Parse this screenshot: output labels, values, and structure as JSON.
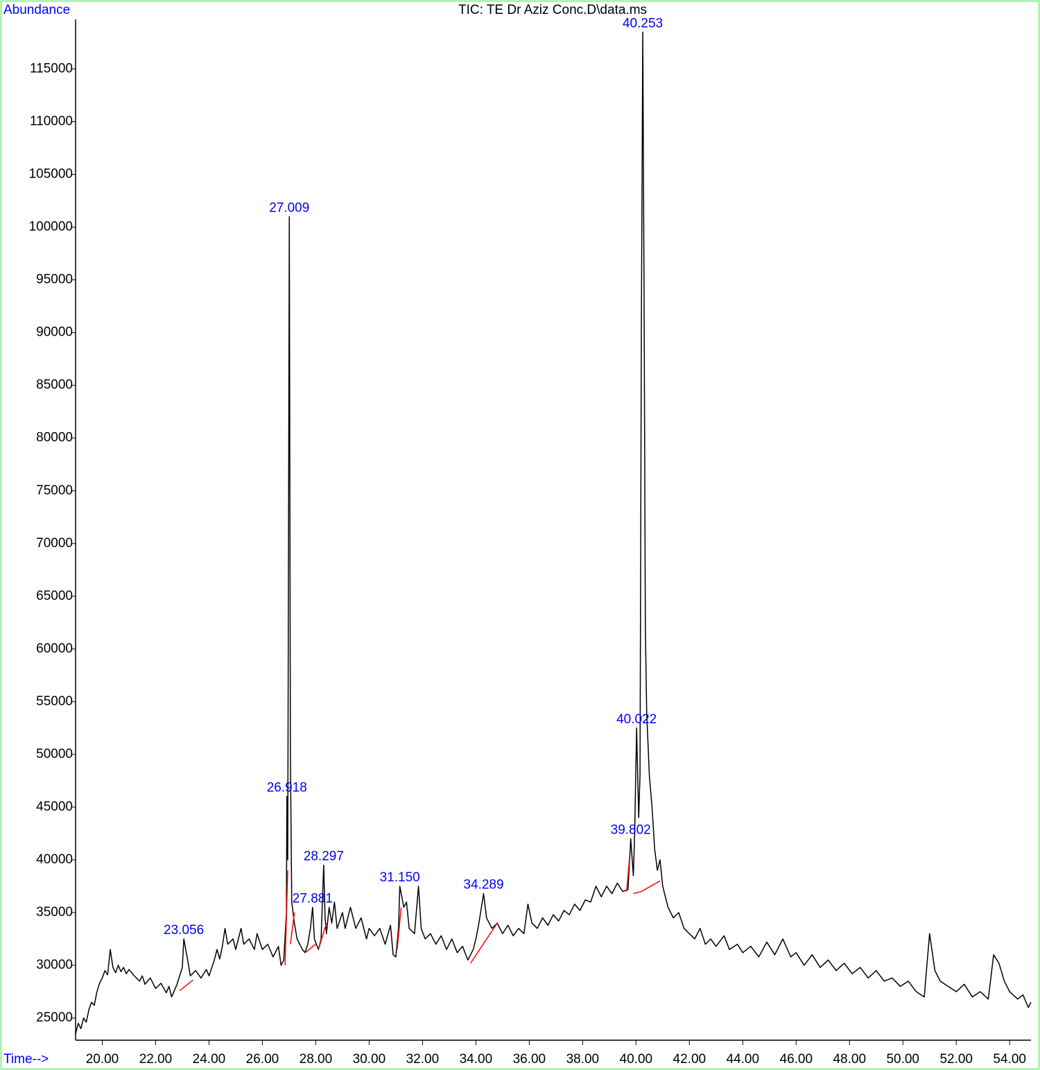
{
  "chart_data": {
    "type": "line",
    "title": "TIC: TE Dr Aziz Conc.D\\data.ms",
    "y_label": "Abundance",
    "x_label": "Time-->",
    "xlim": [
      19.0,
      54.8
    ],
    "ylim": [
      22900,
      119700
    ],
    "xticks": [
      {
        "value": 20,
        "label": "20.00"
      },
      {
        "value": 22,
        "label": "22.00"
      },
      {
        "value": 24,
        "label": "24.00"
      },
      {
        "value": 26,
        "label": "26.00"
      },
      {
        "value": 28,
        "label": "28.00"
      },
      {
        "value": 30,
        "label": "30.00"
      },
      {
        "value": 32,
        "label": "32.00"
      },
      {
        "value": 34,
        "label": "34.00"
      },
      {
        "value": 36,
        "label": "36.00"
      },
      {
        "value": 38,
        "label": "38.00"
      },
      {
        "value": 40,
        "label": "40.00"
      },
      {
        "value": 42,
        "label": "42.00"
      },
      {
        "value": 44,
        "label": "44.00"
      },
      {
        "value": 46,
        "label": "46.00"
      },
      {
        "value": 48,
        "label": "48.00"
      },
      {
        "value": 50,
        "label": "50.00"
      },
      {
        "value": 52,
        "label": "52.00"
      },
      {
        "value": 54,
        "label": "54.00"
      }
    ],
    "yticks": [
      25000,
      30000,
      35000,
      40000,
      45000,
      50000,
      55000,
      60000,
      65000,
      70000,
      75000,
      80000,
      85000,
      90000,
      95000,
      100000,
      105000,
      110000,
      115000
    ],
    "x": [
      19.0,
      19.1,
      19.2,
      19.3,
      19.4,
      19.5,
      19.6,
      19.7,
      19.8,
      19.9,
      20.0,
      20.1,
      20.2,
      20.3,
      20.4,
      20.5,
      20.6,
      20.7,
      20.8,
      20.9,
      21.0,
      21.2,
      21.4,
      21.5,
      21.6,
      21.8,
      22.0,
      22.2,
      22.4,
      22.5,
      22.6,
      22.8,
      23.0,
      23.056,
      23.2,
      23.3,
      23.5,
      23.7,
      23.9,
      24.0,
      24.2,
      24.3,
      24.4,
      24.5,
      24.6,
      24.7,
      24.9,
      25.0,
      25.2,
      25.3,
      25.5,
      25.7,
      25.8,
      26.0,
      26.2,
      26.4,
      26.6,
      26.7,
      26.8,
      26.9,
      26.918,
      26.95,
      27.009,
      27.05,
      27.1,
      27.2,
      27.3,
      27.5,
      27.6,
      27.7,
      27.8,
      27.881,
      27.95,
      28.1,
      28.2,
      28.297,
      28.35,
      28.4,
      28.5,
      28.6,
      28.7,
      28.8,
      29.0,
      29.1,
      29.3,
      29.5,
      29.7,
      29.9,
      30.0,
      30.2,
      30.4,
      30.6,
      30.8,
      30.9,
      31.0,
      31.1,
      31.15,
      31.3,
      31.4,
      31.5,
      31.7,
      31.85,
      31.95,
      32.1,
      32.3,
      32.5,
      32.7,
      32.9,
      33.1,
      33.3,
      33.5,
      33.7,
      33.9,
      34.0,
      34.1,
      34.289,
      34.4,
      34.6,
      34.8,
      35.0,
      35.2,
      35.4,
      35.6,
      35.8,
      35.95,
      36.1,
      36.3,
      36.5,
      36.7,
      36.9,
      37.1,
      37.3,
      37.5,
      37.7,
      37.9,
      38.1,
      38.3,
      38.5,
      38.7,
      38.9,
      39.1,
      39.3,
      39.5,
      39.7,
      39.802,
      39.9,
      39.95,
      40.022,
      40.1,
      40.15,
      40.2,
      40.253,
      40.3,
      40.35,
      40.4,
      40.5,
      40.6,
      40.7,
      40.8,
      40.9,
      41.0,
      41.2,
      41.4,
      41.6,
      41.8,
      42.0,
      42.2,
      42.4,
      42.6,
      42.8,
      43.0,
      43.3,
      43.5,
      43.8,
      44.0,
      44.3,
      44.6,
      44.9,
      45.2,
      45.5,
      45.8,
      46.0,
      46.3,
      46.6,
      46.9,
      47.2,
      47.5,
      47.8,
      48.1,
      48.4,
      48.7,
      49.0,
      49.3,
      49.6,
      49.9,
      50.2,
      50.5,
      50.8,
      51.0,
      51.2,
      51.4,
      51.7,
      52.0,
      52.3,
      52.6,
      52.9,
      53.2,
      53.4,
      53.6,
      53.8,
      54.0,
      54.3,
      54.5,
      54.7,
      54.8
    ],
    "series": [
      {
        "color": "#000000",
        "values": [
          23500,
          24500,
          24000,
          25000,
          24600,
          25800,
          26500,
          26200,
          27500,
          28300,
          28800,
          29500,
          29100,
          31500,
          29800,
          29300,
          30000,
          29400,
          29800,
          29200,
          29600,
          29000,
          28500,
          29000,
          28200,
          28800,
          27800,
          28300,
          27400,
          28000,
          27000,
          28200,
          29800,
          32500,
          30500,
          29000,
          29500,
          28800,
          29600,
          29000,
          30500,
          31500,
          30600,
          31800,
          33500,
          32000,
          32500,
          31500,
          33500,
          32000,
          32500,
          31500,
          33000,
          31500,
          32000,
          30800,
          31800,
          30000,
          30500,
          35000,
          46000,
          40000,
          101000,
          50000,
          36000,
          34000,
          32500,
          31500,
          31200,
          32000,
          33500,
          35500,
          32500,
          31500,
          32500,
          39500,
          34500,
          33000,
          35500,
          34000,
          36000,
          33500,
          35000,
          33500,
          35500,
          33500,
          34500,
          32500,
          33500,
          32800,
          33500,
          32000,
          33800,
          31000,
          30800,
          33500,
          37500,
          35500,
          36000,
          33500,
          33000,
          37500,
          33500,
          32500,
          33000,
          32000,
          32800,
          31500,
          32500,
          31200,
          31800,
          30500,
          31500,
          32500,
          33800,
          36800,
          34500,
          33500,
          34000,
          33000,
          33800,
          32800,
          33500,
          33000,
          35800,
          34000,
          33500,
          34500,
          33800,
          34800,
          34200,
          35200,
          34800,
          35800,
          35200,
          36200,
          36000,
          37500,
          36500,
          37500,
          36800,
          37800,
          37000,
          37200,
          42000,
          38500,
          42500,
          52500,
          44000,
          48000,
          90000,
          118500,
          95000,
          62000,
          54000,
          48000,
          45000,
          41000,
          39000,
          40000,
          37500,
          35500,
          34500,
          35000,
          33500,
          33000,
          32500,
          33500,
          32000,
          32500,
          31800,
          32800,
          31500,
          32000,
          31200,
          31800,
          30800,
          32200,
          31000,
          32500,
          30800,
          31200,
          30000,
          31000,
          29800,
          30500,
          29500,
          30200,
          29200,
          29800,
          28800,
          29500,
          28500,
          28800,
          28000,
          28500,
          27500,
          27000,
          33000,
          29500,
          28500,
          28000,
          27500,
          28200,
          27000,
          27500,
          26800,
          31000,
          30200,
          28500,
          27500,
          26800,
          27200,
          26000,
          26500
        ]
      }
    ],
    "baseline_color": "#ff0000",
    "baselines": [
      {
        "x": [
          22.9,
          23.4
        ],
        "y": [
          27600,
          28600
        ]
      },
      {
        "x": [
          26.85,
          26.95
        ],
        "y": [
          30000,
          39000
        ]
      },
      {
        "x": [
          27.05,
          27.2
        ],
        "y": [
          32000,
          35000
        ]
      },
      {
        "x": [
          27.6,
          28.0
        ],
        "y": [
          31200,
          32000
        ]
      },
      {
        "x": [
          28.1,
          28.4
        ],
        "y": [
          31500,
          34000
        ]
      },
      {
        "x": [
          31.05,
          31.2
        ],
        "y": [
          31500,
          35500
        ]
      },
      {
        "x": [
          33.8,
          34.8
        ],
        "y": [
          30200,
          34000
        ]
      },
      {
        "x": [
          39.65,
          39.75
        ],
        "y": [
          37000,
          40000
        ]
      },
      {
        "x": [
          39.9,
          40.2
        ],
        "y": [
          36800,
          37000
        ]
      },
      {
        "x": [
          40.2,
          40.9
        ],
        "y": [
          37000,
          38000
        ]
      }
    ],
    "label_color": "#0000ff",
    "peaks": [
      {
        "label": "23.056",
        "x": 23.056,
        "y": 32500
      },
      {
        "label": "26.918",
        "x": 26.918,
        "y": 46000
      },
      {
        "label": "27.009",
        "x": 27.009,
        "y": 101000
      },
      {
        "label": "27.881",
        "x": 27.881,
        "y": 35500
      },
      {
        "label": "28.297",
        "x": 28.297,
        "y": 39500
      },
      {
        "label": "31.150",
        "x": 31.15,
        "y": 37500
      },
      {
        "label": "34.289",
        "x": 34.289,
        "y": 36800
      },
      {
        "label": "39.802",
        "x": 39.802,
        "y": 42000
      },
      {
        "label": "40.022",
        "x": 40.022,
        "y": 52500
      },
      {
        "label": "40.253",
        "x": 40.253,
        "y": 118500
      }
    ]
  }
}
